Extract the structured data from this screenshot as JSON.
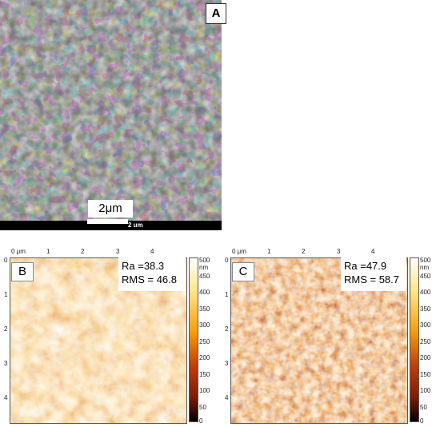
{
  "panel_a": {
    "label": "A",
    "scale_label": "2μm",
    "bar_text": "2 um"
  },
  "panel_b": {
    "label": "B",
    "ra": "Ra =38.3",
    "rms": "RMS = 46.8",
    "x_ticks": [
      "0 μm",
      "1",
      "2",
      "3",
      "4"
    ],
    "y_ticks": [
      "0",
      "1",
      "2",
      "3",
      "4"
    ],
    "cbar_ticks": [
      "500 nm",
      "450",
      "400",
      "350",
      "300",
      "250",
      "200",
      "150",
      "100",
      "50",
      "0"
    ]
  },
  "panel_c": {
    "label": "C",
    "ra": "Ra =47.9",
    "rms": "RMS = 58.7",
    "x_ticks": [
      "0 μm",
      "1",
      "2",
      "3",
      "4"
    ],
    "y_ticks": [
      "0",
      "1",
      "2",
      "3",
      "4"
    ],
    "cbar_ticks": [
      "500 nm",
      "450",
      "400",
      "350",
      "300",
      "250",
      "200",
      "150",
      "100",
      "50",
      "0"
    ]
  },
  "colors": {
    "afm_low": "#000000",
    "afm_mid": "#c2410c",
    "afm_high": "#fde68a",
    "afm_top": "#ffffff"
  }
}
